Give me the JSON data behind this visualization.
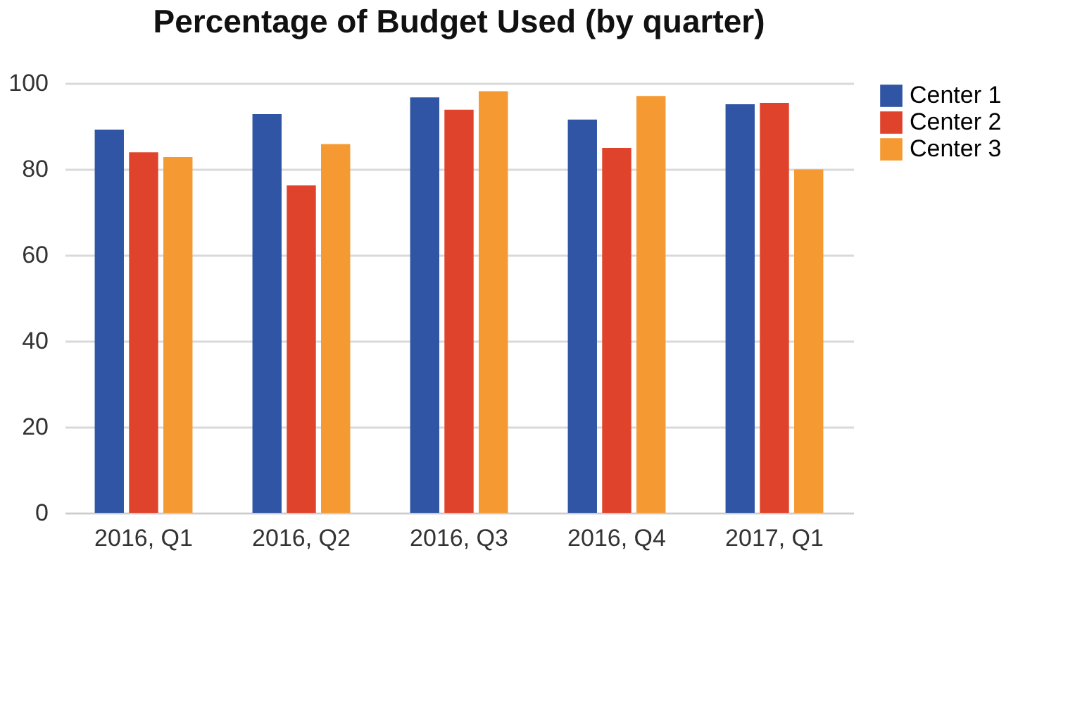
{
  "chart_data": {
    "type": "bar",
    "title": "Percentage of Budget Used (by quarter)",
    "categories": [
      "2016, Q1",
      "2016, Q2",
      "2016, Q3",
      "2016, Q4",
      "2017, Q1"
    ],
    "series": [
      {
        "name": "Center 1",
        "color": "#2f55a4",
        "values": [
          89.2,
          92.8,
          96.7,
          91.5,
          95.1
        ]
      },
      {
        "name": "Center 2",
        "color": "#e0432b",
        "values": [
          83.9,
          76.2,
          93.8,
          84.9,
          95.4
        ]
      },
      {
        "name": "Center 3",
        "color": "#f59a32",
        "values": [
          82.8,
          85.8,
          98.1,
          97.0,
          79.9
        ]
      }
    ],
    "ylim": [
      0,
      100
    ],
    "yticks": [
      0,
      20,
      40,
      60,
      80,
      100
    ],
    "grid": "y",
    "legend": "right"
  }
}
